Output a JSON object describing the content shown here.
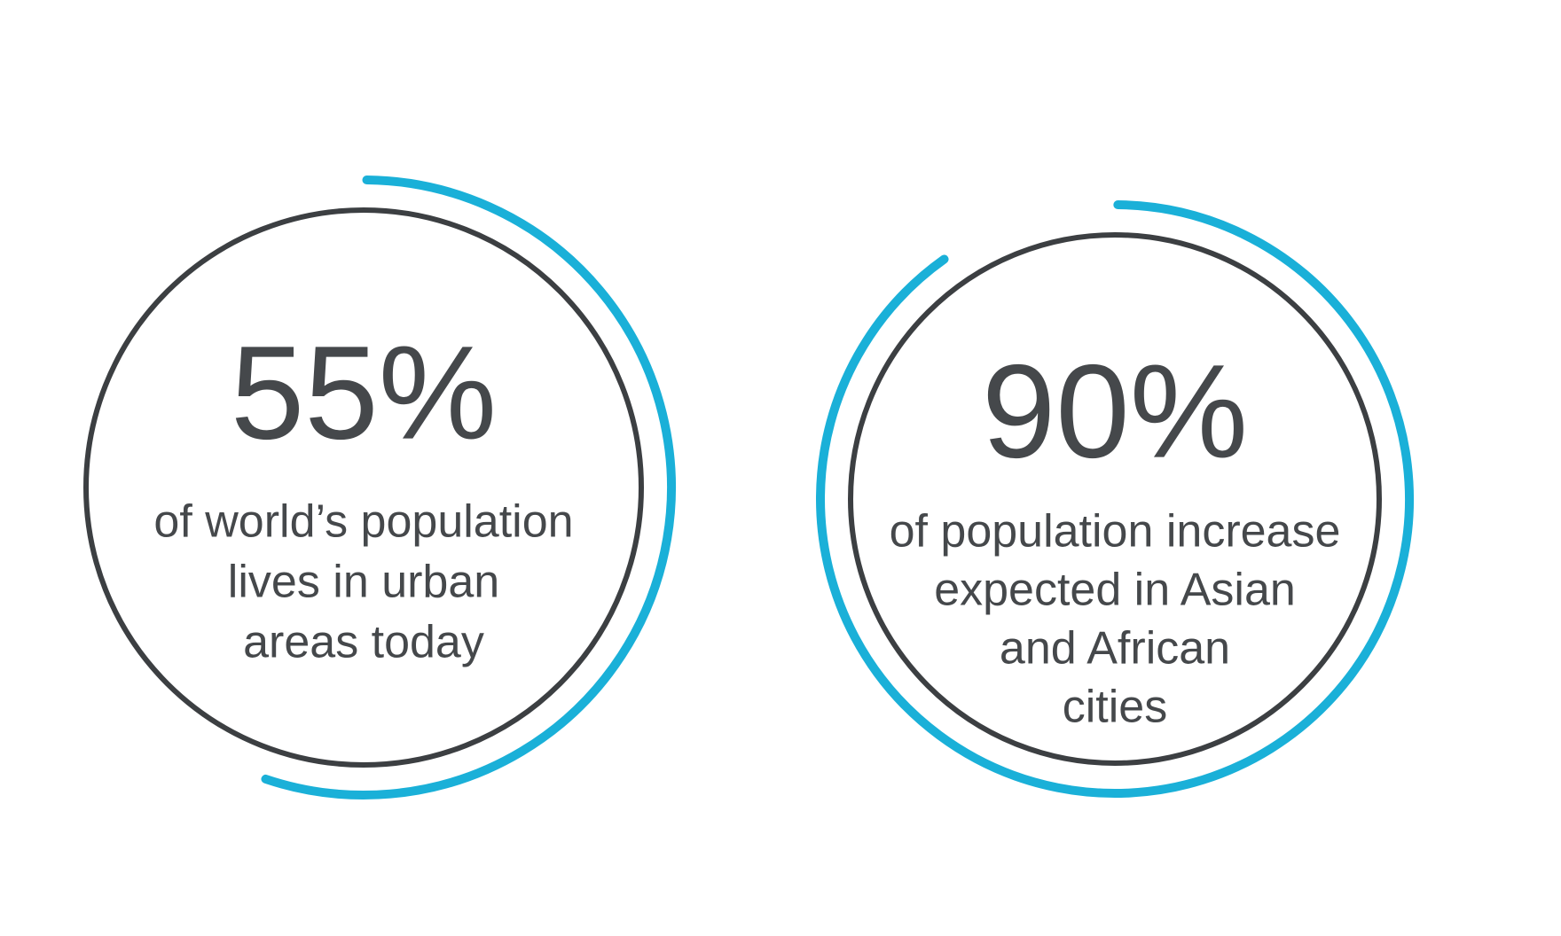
{
  "chart_data": [
    {
      "type": "radial-progress",
      "values": [
        55
      ],
      "value_labels": [
        "55%"
      ],
      "ylim": [
        0,
        100
      ],
      "color": "#1ab0d8",
      "caption": [
        "of world’s population",
        "lives in urban",
        "areas today"
      ]
    },
    {
      "type": "radial-progress",
      "values": [
        90
      ],
      "value_labels": [
        "90%"
      ],
      "ylim": [
        0,
        100
      ],
      "color": "#1ab0d8",
      "caption": [
        "of population increase",
        "expected in Asian",
        "and African",
        "cities"
      ]
    }
  ]
}
